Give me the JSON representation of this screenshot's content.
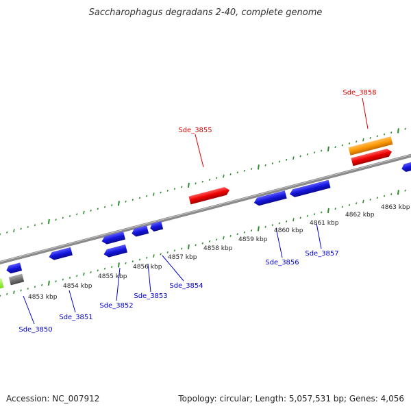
{
  "title": "Saccharophagus degradans 2-40, complete genome",
  "footer": {
    "accession": "Accession: NC_007912",
    "summary": "Topology: circular; Length: 5,057,531 bp; Genes: 4,056"
  },
  "colors": {
    "backbone": "#8a8a8a",
    "tick": "#2e8b2e",
    "forward_gene": "#ee0000",
    "reverse_gene": "#1515dd",
    "highlight_gene": "#ff9900",
    "grey_gene": "#777777",
    "green_gene": "#99ff33",
    "label_forward": "#dd0000",
    "label_reverse": "#0000cc"
  },
  "kbp_labels": [
    "4853 kbp",
    "4854 kbp",
    "4855 kbp",
    "4856 kbp",
    "4857 kbp",
    "4858 kbp",
    "4859 kbp",
    "4860 kbp",
    "4861 kbp",
    "4862 kbp",
    "4863 kbp"
  ],
  "gene_labels": {
    "forward": [
      "Sde_3855",
      "Sde_3858"
    ],
    "reverse": [
      "Sde_3850",
      "Sde_3851",
      "Sde_3852",
      "Sde_3853",
      "Sde_3854",
      "Sde_3856",
      "Sde_3857"
    ]
  }
}
